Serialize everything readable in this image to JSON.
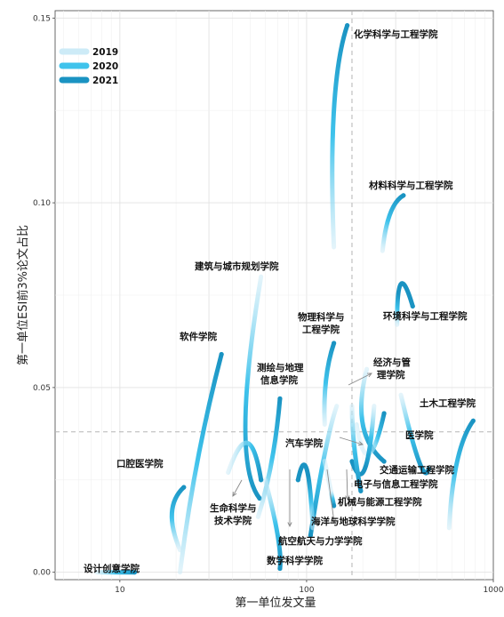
{
  "chart_data": {
    "type": "line",
    "xlabel": "第一单位发文量",
    "ylabel": "第一单位ESI前3%论文占比",
    "x_scale": "log10",
    "xlim": [
      4.5,
      1000
    ],
    "ylim": [
      -0.002,
      0.152
    ],
    "x_ticks": [
      {
        "value": 10,
        "label": "10"
      },
      {
        "value": 100,
        "label": "100"
      },
      {
        "value": 1000,
        "label": "1000"
      }
    ],
    "y_ticks": [
      {
        "value": 0.0,
        "label": "0.00"
      },
      {
        "value": 0.05,
        "label": "0.05"
      },
      {
        "value": 0.1,
        "label": "0.10"
      },
      {
        "value": 0.15,
        "label": "0.15"
      }
    ],
    "reference_lines": {
      "x": 175,
      "y": 0.038
    },
    "grid": true,
    "legend_position": "top-left",
    "legend": [
      {
        "label": "2019",
        "color": "#cdebf7"
      },
      {
        "label": "2020",
        "color": "#3fc3ec"
      },
      {
        "label": "2021",
        "color": "#1a93c2"
      }
    ],
    "series": [
      {
        "name": "化学科学与工程学院",
        "points": [
          [
            140,
            0.088
          ],
          [
            140,
            0.125
          ],
          [
            165,
            0.148
          ]
        ]
      },
      {
        "name": "材料科学与工程学院",
        "points": [
          [
            255,
            0.087
          ],
          [
            280,
            0.097
          ],
          [
            330,
            0.102
          ]
        ]
      },
      {
        "name": "环境科学与工程学院",
        "points": [
          [
            305,
            0.067
          ],
          [
            320,
            0.078
          ],
          [
            370,
            0.072
          ]
        ]
      },
      {
        "name": "建筑与城市规划学院",
        "points": [
          [
            57,
            0.08
          ],
          [
            47,
            0.04
          ],
          [
            56,
            0.02
          ]
        ]
      },
      {
        "name": "软件学院",
        "points": [
          [
            21,
            0.0
          ],
          [
            26,
            0.03
          ],
          [
            35,
            0.059
          ]
        ]
      },
      {
        "name": "物理科学与工程学院",
        "points": [
          [
            125,
            0.04
          ],
          [
            127,
            0.052
          ],
          [
            140,
            0.062
          ]
        ]
      },
      {
        "name": "测绘与地理信息学院",
        "points": [
          [
            55,
            0.015
          ],
          [
            65,
            0.03
          ],
          [
            72,
            0.047
          ]
        ]
      },
      {
        "name": "经济与管理学院",
        "points": [
          [
            210,
            0.055
          ],
          [
            200,
            0.04
          ],
          [
            260,
            0.03
          ]
        ]
      },
      {
        "name": "土木工程学院",
        "points": [
          [
            580,
            0.012
          ],
          [
            640,
            0.03
          ],
          [
            780,
            0.041
          ]
        ]
      },
      {
        "name": "医学院",
        "points": [
          [
            320,
            0.048
          ],
          [
            400,
            0.03
          ],
          [
            450,
            0.028
          ]
        ]
      },
      {
        "name": "汽车学院",
        "points": [
          [
            185,
            0.04
          ],
          [
            215,
            0.032
          ],
          [
            260,
            0.043
          ]
        ]
      },
      {
        "name": "交通运输工程学院",
        "points": [
          [
            230,
            0.045
          ],
          [
            205,
            0.028
          ],
          [
            175,
            0.03
          ]
        ]
      },
      {
        "name": "电子与信息工程学院",
        "points": [
          [
            175,
            0.045
          ],
          [
            180,
            0.034
          ],
          [
            195,
            0.022
          ]
        ]
      },
      {
        "name": "机械与能源工程学院",
        "points": [
          [
            145,
            0.045
          ],
          [
            125,
            0.032
          ],
          [
            105,
            0.01
          ]
        ]
      },
      {
        "name": "海洋与地球科学学院",
        "points": [
          [
            135,
            0.022
          ],
          [
            125,
            0.03
          ],
          [
            140,
            0.018
          ]
        ]
      },
      {
        "name": "航空航天与力学学院",
        "points": [
          [
            108,
            0.012
          ],
          [
            100,
            0.028
          ],
          [
            90,
            0.025
          ]
        ]
      },
      {
        "name": "数学科学学院",
        "points": [
          [
            60,
            0.025
          ],
          [
            70,
            0.01
          ],
          [
            72,
            0.001
          ]
        ]
      },
      {
        "name": "生命科学与技术学院",
        "points": [
          [
            38,
            0.027
          ],
          [
            48,
            0.035
          ],
          [
            57,
            0.025
          ]
        ]
      },
      {
        "name": "口腔医学院",
        "points": [
          [
            21,
            0.006
          ],
          [
            19,
            0.016
          ],
          [
            22,
            0.023
          ]
        ]
      },
      {
        "name": "设计创意学院",
        "points": [
          [
            7.5,
            0.0
          ],
          [
            9.5,
            0.0
          ],
          [
            12,
            0.0
          ]
        ]
      }
    ],
    "labels": [
      {
        "text": "化学科学与工程学院"
      },
      {
        "text": "材料科学与工程学院"
      },
      {
        "text": "建筑与城市规划学院"
      },
      {
        "text": "物理科学与"
      },
      {
        "text": "工程学院"
      },
      {
        "text": "环境科学与工程学院"
      },
      {
        "text": "软件学院"
      },
      {
        "text": "测绘与地理"
      },
      {
        "text": "信息学院"
      },
      {
        "text": "经济与管"
      },
      {
        "text": "理学院"
      },
      {
        "text": "土木工程学院"
      },
      {
        "text": "医学院"
      },
      {
        "text": "汽车学院"
      },
      {
        "text": "交通运输工程学院"
      },
      {
        "text": "口腔医学院"
      },
      {
        "text": "电子与信息工程学院"
      },
      {
        "text": "机械与能源工程学院"
      },
      {
        "text": "生命科学与"
      },
      {
        "text": "技术学院"
      },
      {
        "text": "海洋与地球科学学院"
      },
      {
        "text": "航空航天与力学学院"
      },
      {
        "text": "数学科学学院"
      },
      {
        "text": "设计创意学院"
      }
    ]
  }
}
